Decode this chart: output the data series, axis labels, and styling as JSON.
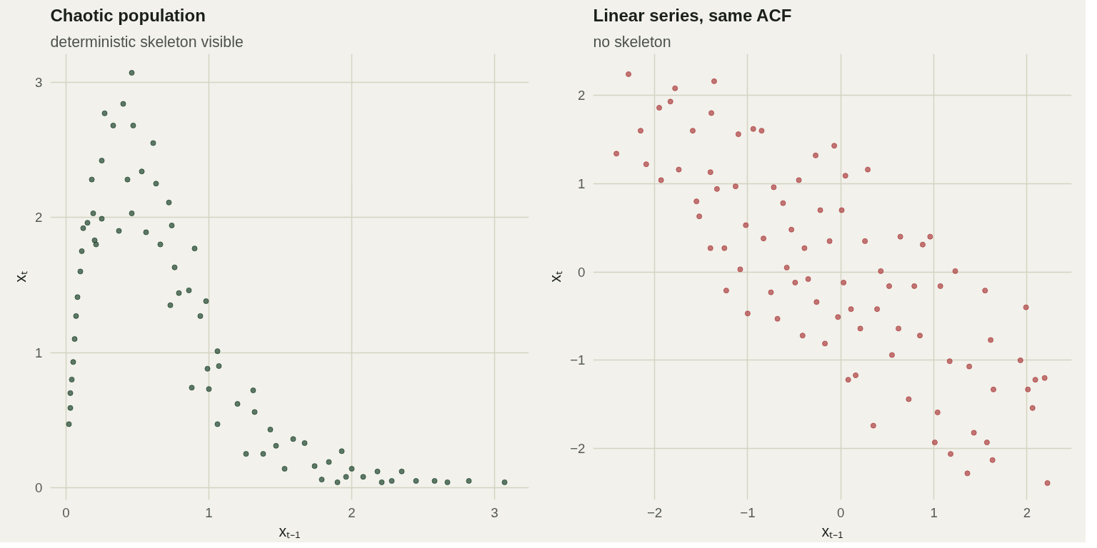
{
  "chart_data": [
    {
      "type": "scatter",
      "title": "Chaotic population",
      "subtitle": "deterministic skeleton visible",
      "xlabel": "xₜ₋₁",
      "ylabel": "xₜ",
      "xlim": [
        -0.11,
        3.24
      ],
      "ylim": [
        -0.09,
        3.21
      ],
      "xticks": [
        0,
        1,
        2,
        3
      ],
      "yticks": [
        0,
        1,
        2,
        3
      ],
      "grid": true,
      "marker": "circle",
      "series": [
        {
          "color": "#2b4f38",
          "x": [
            0.02,
            0.03,
            0.03,
            0.04,
            0.05,
            0.06,
            0.07,
            0.08,
            0.1,
            0.11,
            0.12,
            0.15,
            0.19,
            0.21,
            0.2,
            0.18,
            0.25,
            0.27,
            0.33,
            0.4,
            0.46,
            0.47,
            0.25,
            0.37,
            0.43,
            0.46,
            0.53,
            0.56,
            0.61,
            0.63,
            0.66,
            0.72,
            0.74,
            0.73,
            0.79,
            0.76,
            0.86,
            0.9,
            0.88,
            0.94,
            0.98,
            0.99,
            1.0,
            1.06,
            1.07,
            1.06,
            1.2,
            1.26,
            1.31,
            1.32,
            1.38,
            1.43,
            1.47,
            1.53,
            1.59,
            1.67,
            1.74,
            1.79,
            1.84,
            1.93,
            1.96,
            2.0,
            2.08,
            2.18,
            2.28,
            2.35,
            2.45,
            2.58,
            2.67,
            2.82,
            3.07,
            2.21,
            1.9
          ],
          "values": [
            0.47,
            0.59,
            0.7,
            0.8,
            0.93,
            1.1,
            1.27,
            1.41,
            1.6,
            1.75,
            1.92,
            1.96,
            2.03,
            1.8,
            1.83,
            2.28,
            2.42,
            2.77,
            2.68,
            2.84,
            3.07,
            2.68,
            1.99,
            1.9,
            2.28,
            2.03,
            2.34,
            1.89,
            2.55,
            2.25,
            1.8,
            2.11,
            1.94,
            1.35,
            1.44,
            1.63,
            1.46,
            1.77,
            0.74,
            1.27,
            1.38,
            0.88,
            0.73,
            1.01,
            0.9,
            0.47,
            0.62,
            0.25,
            0.72,
            0.56,
            0.25,
            0.43,
            0.31,
            0.14,
            0.36,
            0.33,
            0.16,
            0.06,
            0.19,
            0.27,
            0.08,
            0.14,
            0.08,
            0.12,
            0.05,
            0.12,
            0.05,
            0.05,
            0.04,
            0.05,
            0.04,
            0.04,
            0.04
          ]
        }
      ]
    },
    {
      "type": "scatter",
      "title": "Linear series, same ACF",
      "subtitle": "no skeleton",
      "xlabel": "xₜ₋₁",
      "ylabel": "xₜ",
      "xlim": [
        -2.66,
        2.48
      ],
      "ylim": [
        -2.58,
        2.47
      ],
      "xticks": [
        -2,
        -1,
        0,
        1,
        2
      ],
      "yticks": [
        -2,
        -1,
        0,
        1,
        2
      ],
      "grid": true,
      "marker": "circle",
      "series": [
        {
          "color": "#b04a4a",
          "x": [
            -2.41,
            -2.28,
            -2.15,
            -2.09,
            -1.95,
            -1.93,
            -1.83,
            -1.78,
            -1.74,
            -1.59,
            -1.55,
            -1.52,
            -1.4,
            -1.39,
            -1.36,
            -1.4,
            -1.33,
            -1.25,
            -1.23,
            -1.13,
            -1.1,
            -1.08,
            -1.02,
            -1.0,
            -0.94,
            -0.85,
            -0.83,
            -0.75,
            -0.72,
            -0.68,
            -0.62,
            -0.58,
            -0.53,
            -0.45,
            -0.41,
            -0.39,
            -0.35,
            -0.27,
            -0.26,
            -0.22,
            -0.17,
            -0.12,
            -0.07,
            -0.03,
            0.03,
            0.05,
            0.11,
            0.08,
            0.16,
            0.21,
            0.26,
            0.29,
            0.35,
            0.39,
            0.43,
            0.52,
            0.55,
            0.62,
            0.64,
            0.73,
            0.79,
            0.85,
            0.88,
            0.96,
            1.01,
            1.04,
            1.07,
            1.17,
            1.18,
            1.23,
            1.36,
            1.38,
            1.43,
            1.55,
            1.57,
            1.61,
            1.63,
            1.64,
            1.93,
            1.99,
            2.01,
            2.06,
            2.09,
            2.19,
            2.22,
            0.01,
            -0.49
          ],
          "values": [
            1.34,
            2.24,
            1.6,
            1.22,
            1.86,
            1.04,
            1.93,
            2.08,
            1.16,
            1.6,
            0.8,
            0.63,
            1.13,
            1.8,
            2.16,
            0.27,
            0.94,
            0.27,
            -0.21,
            0.97,
            1.56,
            0.03,
            0.53,
            -0.47,
            1.62,
            1.6,
            0.38,
            -0.23,
            0.96,
            -0.53,
            0.78,
            0.05,
            0.48,
            1.04,
            -0.72,
            0.27,
            -0.08,
            1.32,
            -0.34,
            0.7,
            -0.81,
            0.35,
            1.43,
            -0.51,
            -0.12,
            1.09,
            -0.42,
            -1.22,
            -1.17,
            -0.64,
            0.35,
            1.16,
            -1.74,
            -0.42,
            0.01,
            -0.16,
            -0.94,
            -0.64,
            0.4,
            -1.44,
            -0.16,
            -0.72,
            0.31,
            0.4,
            -1.93,
            -1.59,
            -0.16,
            -1.01,
            -2.06,
            0.01,
            -2.28,
            -1.07,
            -1.82,
            -0.21,
            -1.93,
            -0.77,
            -2.13,
            -1.33,
            -1.0,
            -0.4,
            -1.33,
            -1.54,
            -1.22,
            -1.2,
            -2.39,
            0.7,
            -0.12
          ]
        }
      ]
    }
  ]
}
